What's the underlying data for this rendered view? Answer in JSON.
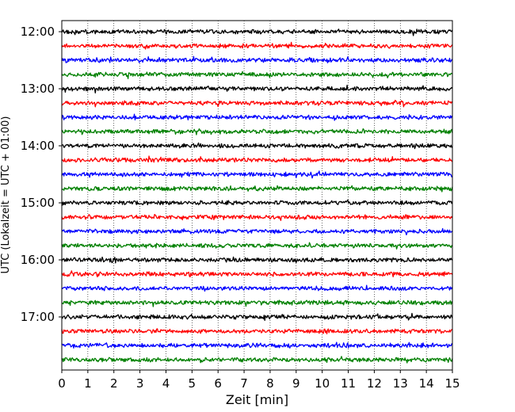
{
  "chart_data": {
    "type": "line",
    "title": "",
    "xlabel": "Zeit  [min]",
    "ylabel": "UTC (Lokalzeit = UTC + 01:00)",
    "xlim": [
      0,
      15
    ],
    "x_ticks": [
      "0",
      "1",
      "2",
      "3",
      "4",
      "5",
      "6",
      "7",
      "8",
      "9",
      "10",
      "11",
      "12",
      "13",
      "14",
      "15"
    ],
    "y_tick_labels": [
      "12:00",
      "13:00",
      "14:00",
      "15:00",
      "16:00",
      "17:00"
    ],
    "grid": "vertical dotted lines at each minute",
    "trace_interval_minutes": 15,
    "trace_colors": [
      "#000000",
      "#ff0000",
      "#0000ff",
      "#008000"
    ],
    "traces": [
      {
        "start": "12:00",
        "color": "#000000"
      },
      {
        "start": "12:15",
        "color": "#ff0000"
      },
      {
        "start": "12:30",
        "color": "#0000ff"
      },
      {
        "start": "12:45",
        "color": "#008000"
      },
      {
        "start": "13:00",
        "color": "#000000"
      },
      {
        "start": "13:15",
        "color": "#ff0000"
      },
      {
        "start": "13:30",
        "color": "#0000ff"
      },
      {
        "start": "13:45",
        "color": "#008000"
      },
      {
        "start": "14:00",
        "color": "#000000"
      },
      {
        "start": "14:15",
        "color": "#ff0000"
      },
      {
        "start": "14:30",
        "color": "#0000ff"
      },
      {
        "start": "14:45",
        "color": "#008000"
      },
      {
        "start": "15:00",
        "color": "#000000"
      },
      {
        "start": "15:15",
        "color": "#ff0000"
      },
      {
        "start": "15:30",
        "color": "#0000ff"
      },
      {
        "start": "15:45",
        "color": "#008000"
      },
      {
        "start": "16:00",
        "color": "#000000"
      },
      {
        "start": "16:15",
        "color": "#ff0000"
      },
      {
        "start": "16:30",
        "color": "#0000ff"
      },
      {
        "start": "16:45",
        "color": "#008000"
      },
      {
        "start": "17:00",
        "color": "#000000"
      },
      {
        "start": "17:15",
        "color": "#ff0000"
      },
      {
        "start": "17:30",
        "color": "#0000ff"
      },
      {
        "start": "17:45",
        "color": "#008000"
      }
    ]
  }
}
